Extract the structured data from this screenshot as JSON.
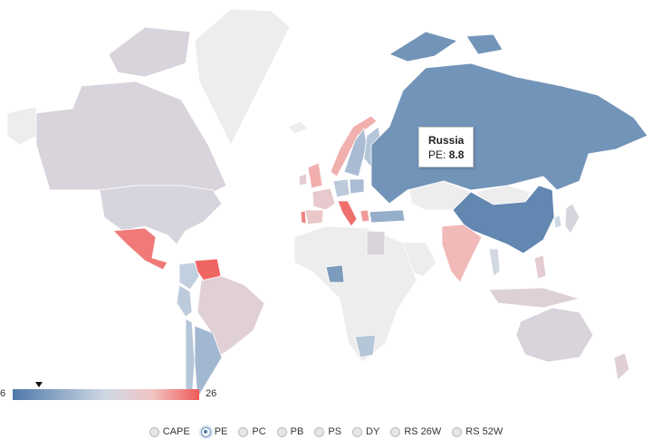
{
  "tooltip": {
    "country": "Russia",
    "metric_label": "PE:",
    "value": "8.8"
  },
  "legend": {
    "min_label": "6",
    "max_label": "26",
    "min": 6,
    "max": 26,
    "marker_value": 8.8
  },
  "metrics": [
    {
      "label": "CAPE",
      "selected": false
    },
    {
      "label": "PE",
      "selected": true
    },
    {
      "label": "PC",
      "selected": false
    },
    {
      "label": "PB",
      "selected": false
    },
    {
      "label": "PS",
      "selected": false
    },
    {
      "label": "DY",
      "selected": false
    },
    {
      "label": "RS 26W",
      "selected": false
    },
    {
      "label": "RS 52W",
      "selected": false
    }
  ],
  "colors": {
    "nodata": "#ededed",
    "low": "#4f79a8",
    "mid": "#cfd9e5",
    "midhigh": "#f1c4c3",
    "high": "#ef5a57"
  },
  "countries": [
    {
      "name": "Canada",
      "pe": 17.5
    },
    {
      "name": "United States",
      "pe": 17.0
    },
    {
      "name": "Alaska (US)",
      "pe": 17.0
    },
    {
      "name": "Greenland",
      "pe": null
    },
    {
      "name": "Mexico",
      "pe": 24.5
    },
    {
      "name": "Colombia",
      "pe": 15.0
    },
    {
      "name": "Venezuela",
      "pe": 25.5
    },
    {
      "name": "Peru",
      "pe": 14.5
    },
    {
      "name": "Brazil",
      "pe": 18.5
    },
    {
      "name": "Chile",
      "pe": 14.0
    },
    {
      "name": "Argentina",
      "pe": 12.5
    },
    {
      "name": "Iceland",
      "pe": null
    },
    {
      "name": "Norway",
      "pe": 22.0
    },
    {
      "name": "Sweden",
      "pe": 13.0
    },
    {
      "name": "Finland",
      "pe": 14.0
    },
    {
      "name": "United Kingdom",
      "pe": 22.0
    },
    {
      "name": "Ireland",
      "pe": 19.0
    },
    {
      "name": "France",
      "pe": 19.5
    },
    {
      "name": "Spain",
      "pe": 20.0
    },
    {
      "name": "Portugal",
      "pe": 24.0
    },
    {
      "name": "Germany",
      "pe": 14.5
    },
    {
      "name": "Italy",
      "pe": 25.0
    },
    {
      "name": "Poland",
      "pe": 13.0
    },
    {
      "name": "Greece",
      "pe": 23.0
    },
    {
      "name": "Turkey",
      "pe": 11.5
    },
    {
      "name": "Russia",
      "pe": 8.8
    },
    {
      "name": "Kazakhstan",
      "pe": null
    },
    {
      "name": "China",
      "pe": 7.5
    },
    {
      "name": "Mongolia",
      "pe": null
    },
    {
      "name": "India",
      "pe": 21.5
    },
    {
      "name": "Japan",
      "pe": 17.0
    },
    {
      "name": "South Korea",
      "pe": 16.0
    },
    {
      "name": "Egypt",
      "pe": 17.5
    },
    {
      "name": "Nigeria",
      "pe": 9.5
    },
    {
      "name": "South Africa",
      "pe": 14.0
    },
    {
      "name": "Saudi Arabia",
      "pe": null
    },
    {
      "name": "Indonesia",
      "pe": 18.0
    },
    {
      "name": "Philippines",
      "pe": 19.0
    },
    {
      "name": "Thailand",
      "pe": 16.5
    },
    {
      "name": "Australia",
      "pe": 17.5
    },
    {
      "name": "New Zealand",
      "pe": 18.5
    }
  ]
}
